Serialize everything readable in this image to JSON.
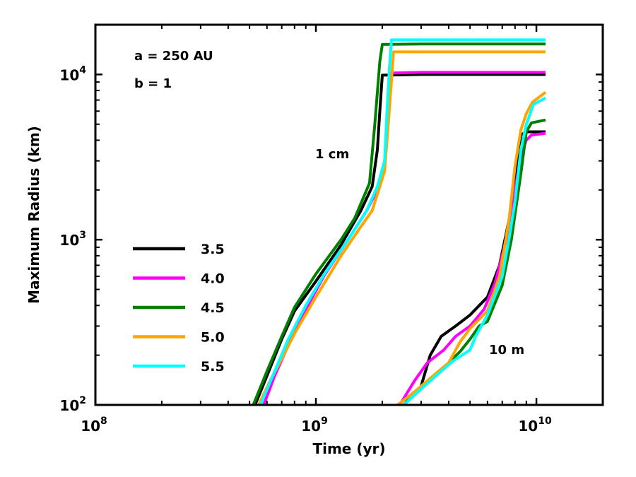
{
  "chart_data": {
    "type": "line",
    "xscale": "log",
    "yscale": "log",
    "xlim": [
      100000000.0,
      20000000000.0
    ],
    "ylim": [
      100,
      20000
    ],
    "xlabel": "Time (yr)",
    "ylabel": "Maximum Radius (km)",
    "x_ticks": [
      {
        "value": 100000000.0,
        "base": "10",
        "exp": "8"
      },
      {
        "value": 1000000000.0,
        "base": "10",
        "exp": "9"
      },
      {
        "value": 10000000000.0,
        "base": "10",
        "exp": "10"
      }
    ],
    "y_ticks": [
      {
        "value": 100,
        "base": "10",
        "exp": "2"
      },
      {
        "value": 1000,
        "base": "10",
        "exp": "3"
      },
      {
        "value": 10000,
        "base": "10",
        "exp": "4"
      }
    ],
    "annotations": {
      "a_param": "a = 250 AU",
      "b_param": "b = 1",
      "group_1cm": "1 cm",
      "group_10m": "10 m"
    },
    "legend": {
      "placement": "left"
    },
    "series": [
      {
        "name": "3.5",
        "color": "#000000",
        "group": "1 cm",
        "points": [
          [
            530000000.0,
            100
          ],
          [
            600000000.0,
            150
          ],
          [
            700000000.0,
            250
          ],
          [
            800000000.0,
            370
          ],
          [
            1000000000.0,
            560
          ],
          [
            1300000000.0,
            930
          ],
          [
            1600000000.0,
            1500
          ],
          [
            1800000000.0,
            2100
          ],
          [
            1900000000.0,
            3500
          ],
          [
            1950000000.0,
            6000
          ],
          [
            2000000000.0,
            9900
          ],
          [
            3000000000.0,
            10000
          ],
          [
            11000000000.0,
            10000
          ]
        ]
      },
      {
        "name": "3.5",
        "color": "#000000",
        "group": "10 m",
        "points": [
          [
            2500000000.0,
            100
          ],
          [
            3000000000.0,
            130
          ],
          [
            3300000000.0,
            200
          ],
          [
            3700000000.0,
            260
          ],
          [
            4300000000.0,
            300
          ],
          [
            5000000000.0,
            350
          ],
          [
            6000000000.0,
            450
          ],
          [
            6800000000.0,
            700
          ],
          [
            7500000000.0,
            1300
          ],
          [
            8000000000.0,
            2200
          ],
          [
            8500000000.0,
            4300
          ],
          [
            9000000000.0,
            4500
          ],
          [
            11000000000.0,
            4500
          ]
        ]
      },
      {
        "name": "4.0",
        "color": "#ff00ff",
        "group": "1 cm",
        "points": [
          [
            580000000.0,
            100
          ],
          [
            650000000.0,
            150
          ],
          [
            750000000.0,
            230
          ],
          [
            900000000.0,
            380
          ],
          [
            1100000000.0,
            620
          ],
          [
            1400000000.0,
            1000
          ],
          [
            1700000000.0,
            1500
          ],
          [
            1900000000.0,
            2000
          ],
          [
            2050000000.0,
            3000
          ],
          [
            2150000000.0,
            6500
          ],
          [
            2200000000.0,
            10200
          ],
          [
            3000000000.0,
            10300
          ],
          [
            11000000000.0,
            10300
          ]
        ]
      },
      {
        "name": "4.0",
        "color": "#ff00ff",
        "group": "10 m",
        "points": [
          [
            2400000000.0,
            100
          ],
          [
            2800000000.0,
            140
          ],
          [
            3200000000.0,
            180
          ],
          [
            3800000000.0,
            215
          ],
          [
            4300000000.0,
            260
          ],
          [
            5000000000.0,
            300
          ],
          [
            5800000000.0,
            380
          ],
          [
            6500000000.0,
            550
          ],
          [
            7300000000.0,
            1000
          ],
          [
            8000000000.0,
            2000
          ],
          [
            8500000000.0,
            3200
          ],
          [
            9000000000.0,
            4000
          ],
          [
            9500000000.0,
            4300
          ],
          [
            11000000000.0,
            4400
          ]
        ]
      },
      {
        "name": "4.5",
        "color": "#008000",
        "group": "1 cm",
        "points": [
          [
            520000000.0,
            100
          ],
          [
            600000000.0,
            160
          ],
          [
            700000000.0,
            260
          ],
          [
            800000000.0,
            390
          ],
          [
            1000000000.0,
            620
          ],
          [
            1300000000.0,
            1000
          ],
          [
            1500000000.0,
            1350
          ],
          [
            1750000000.0,
            2200
          ],
          [
            1850000000.0,
            5000
          ],
          [
            1950000000.0,
            12000
          ],
          [
            2000000000.0,
            15200
          ],
          [
            3000000000.0,
            15300
          ],
          [
            11000000000.0,
            15300
          ]
        ]
      },
      {
        "name": "4.5",
        "color": "#008000",
        "group": "10 m",
        "points": [
          [
            2500000000.0,
            100
          ],
          [
            3000000000.0,
            125
          ],
          [
            3500000000.0,
            150
          ],
          [
            4000000000.0,
            180
          ],
          [
            4500000000.0,
            210
          ],
          [
            5000000000.0,
            250
          ],
          [
            5500000000.0,
            300
          ],
          [
            6000000000.0,
            320
          ],
          [
            7000000000.0,
            530
          ],
          [
            7700000000.0,
            1000
          ],
          [
            8500000000.0,
            2500
          ],
          [
            9000000000.0,
            4500
          ],
          [
            9500000000.0,
            5100
          ],
          [
            11000000000.0,
            5300
          ]
        ]
      },
      {
        "name": "5.0",
        "color": "#ffa500",
        "group": "1 cm",
        "points": [
          [
            550000000.0,
            100
          ],
          [
            620000000.0,
            140
          ],
          [
            700000000.0,
            190
          ],
          [
            800000000.0,
            270
          ],
          [
            1000000000.0,
            450
          ],
          [
            1300000000.0,
            800
          ],
          [
            1600000000.0,
            1200
          ],
          [
            1800000000.0,
            1500
          ],
          [
            2050000000.0,
            2600
          ],
          [
            2150000000.0,
            6000
          ],
          [
            2250000000.0,
            13700
          ],
          [
            3000000000.0,
            13700
          ],
          [
            11000000000.0,
            13700
          ]
        ]
      },
      {
        "name": "5.0",
        "color": "#ffa500",
        "group": "10 m",
        "points": [
          [
            2350000000.0,
            100
          ],
          [
            2800000000.0,
            120
          ],
          [
            3300000000.0,
            145
          ],
          [
            4000000000.0,
            180
          ],
          [
            4500000000.0,
            240
          ],
          [
            5000000000.0,
            290
          ],
          [
            6000000000.0,
            370
          ],
          [
            6800000000.0,
            600
          ],
          [
            7500000000.0,
            1300
          ],
          [
            8000000000.0,
            2800
          ],
          [
            8500000000.0,
            4600
          ],
          [
            9000000000.0,
            5800
          ],
          [
            9600000000.0,
            6800
          ],
          [
            11000000000.0,
            7800
          ]
        ]
      },
      {
        "name": "5.5",
        "color": "#00ffff",
        "group": "1 cm",
        "points": [
          [
            560000000.0,
            100
          ],
          [
            650000000.0,
            160
          ],
          [
            750000000.0,
            250
          ],
          [
            900000000.0,
            400
          ],
          [
            1100000000.0,
            630
          ],
          [
            1400000000.0,
            1000
          ],
          [
            1700000000.0,
            1500
          ],
          [
            1900000000.0,
            2100
          ],
          [
            2050000000.0,
            3000
          ],
          [
            2100000000.0,
            6000
          ],
          [
            2150000000.0,
            10500
          ],
          [
            2200000000.0,
            16200
          ],
          [
            11000000000.0,
            16200
          ]
        ]
      },
      {
        "name": "5.5",
        "color": "#00ffff",
        "group": "10 m",
        "points": [
          [
            2500000000.0,
            100
          ],
          [
            2900000000.0,
            120
          ],
          [
            3500000000.0,
            150
          ],
          [
            4200000000.0,
            185
          ],
          [
            5000000000.0,
            215
          ],
          [
            5300000000.0,
            260
          ],
          [
            6000000000.0,
            350
          ],
          [
            7000000000.0,
            600
          ],
          [
            7500000000.0,
            1000
          ],
          [
            8000000000.0,
            1700
          ],
          [
            8500000000.0,
            3500
          ],
          [
            9000000000.0,
            5000
          ],
          [
            9700000000.0,
            6600
          ],
          [
            11000000000.0,
            7200
          ]
        ]
      }
    ],
    "legend_entries": [
      {
        "label": "3.5",
        "color": "#000000"
      },
      {
        "label": "4.0",
        "color": "#ff00ff"
      },
      {
        "label": "4.5",
        "color": "#008000"
      },
      {
        "label": "5.0",
        "color": "#ffa500"
      },
      {
        "label": "5.5",
        "color": "#00ffff"
      }
    ]
  }
}
